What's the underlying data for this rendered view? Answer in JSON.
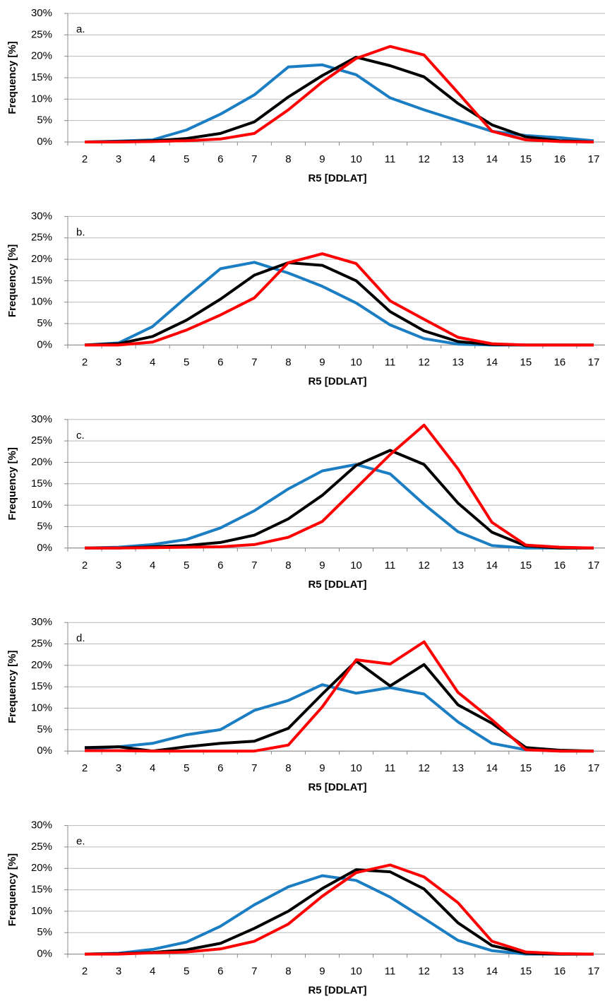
{
  "chart_data": [
    {
      "type": "line",
      "label": "a.",
      "ylabel": "Frequency [%]",
      "xlabel": "R5 [DDLAT]",
      "categories": [
        2,
        3,
        4,
        5,
        6,
        7,
        8,
        9,
        10,
        11,
        12,
        13,
        14,
        15,
        16,
        17
      ],
      "ylim": [
        0,
        30
      ],
      "yticks": [
        {
          "value": 0,
          "label": "0%"
        },
        {
          "value": 5,
          "label": "5%"
        },
        {
          "value": 10,
          "label": "10%"
        },
        {
          "value": 15,
          "label": "15%"
        },
        {
          "value": 20,
          "label": "20%"
        },
        {
          "value": 25,
          "label": "25%"
        },
        {
          "value": 30,
          "label": "30%"
        }
      ],
      "grid": true,
      "series": [
        {
          "color": "#1b7dc2",
          "values": [
            0,
            0.2,
            0.5,
            2.8,
            6.5,
            11,
            17.5,
            18,
            15.7,
            10.3,
            7.5,
            5,
            2.5,
            1.5,
            1,
            0.3
          ]
        },
        {
          "color": "#000000",
          "values": [
            0,
            0.1,
            0.3,
            0.8,
            2,
            4.7,
            10.5,
            15.5,
            19.8,
            17.8,
            15.2,
            9,
            4,
            1.2,
            0.3,
            0
          ]
        },
        {
          "color": "#ff0000",
          "values": [
            0,
            0,
            0.1,
            0.3,
            0.7,
            2,
            7.5,
            14,
            19.5,
            22.3,
            20.3,
            11.5,
            2.5,
            0.5,
            0.1,
            0
          ]
        }
      ]
    },
    {
      "type": "line",
      "label": "b.",
      "ylabel": "Frequency [%]",
      "xlabel": "R5 [DDLAT]",
      "categories": [
        2,
        3,
        4,
        5,
        6,
        7,
        8,
        9,
        10,
        11,
        12,
        13,
        14,
        15,
        16,
        17
      ],
      "ylim": [
        0,
        30
      ],
      "yticks": [
        {
          "value": 0,
          "label": "0%"
        },
        {
          "value": 5,
          "label": "5%"
        },
        {
          "value": 10,
          "label": "10%"
        },
        {
          "value": 15,
          "label": "15%"
        },
        {
          "value": 20,
          "label": "20%"
        },
        {
          "value": 25,
          "label": "25%"
        },
        {
          "value": 30,
          "label": "30%"
        }
      ],
      "grid": true,
      "series": [
        {
          "color": "#1b7dc2",
          "values": [
            0,
            0.5,
            4.3,
            11.2,
            17.8,
            19.3,
            16.8,
            13.7,
            9.8,
            4.7,
            1.5,
            0.2,
            0,
            0,
            0,
            0
          ]
        },
        {
          "color": "#000000",
          "values": [
            0,
            0.3,
            2,
            5.8,
            10.7,
            16.3,
            19.2,
            18.6,
            15,
            7.8,
            3.3,
            0.8,
            0.1,
            0,
            0,
            0
          ]
        },
        {
          "color": "#ff0000",
          "values": [
            0,
            0,
            0.7,
            3.5,
            7,
            11,
            19.2,
            21.3,
            19,
            10.3,
            6,
            1.8,
            0.3,
            0,
            0,
            0
          ]
        }
      ]
    },
    {
      "type": "line",
      "label": "c.",
      "ylabel": "Frequency [%]",
      "xlabel": "R5 [DDLAT]",
      "categories": [
        2,
        3,
        4,
        5,
        6,
        7,
        8,
        9,
        10,
        11,
        12,
        13,
        14,
        15,
        16,
        17
      ],
      "ylim": [
        0,
        30
      ],
      "yticks": [
        {
          "value": 0,
          "label": "0%"
        },
        {
          "value": 5,
          "label": "5%"
        },
        {
          "value": 10,
          "label": "10%"
        },
        {
          "value": 15,
          "label": "15%"
        },
        {
          "value": 20,
          "label": "20%"
        },
        {
          "value": 25,
          "label": "25%"
        },
        {
          "value": 30,
          "label": "30%"
        }
      ],
      "grid": true,
      "series": [
        {
          "color": "#1b7dc2",
          "values": [
            0,
            0.2,
            0.8,
            2,
            4.7,
            8.7,
            13.8,
            18,
            19.5,
            17.3,
            10.2,
            3.8,
            0.6,
            0,
            0,
            0
          ]
        },
        {
          "color": "#000000",
          "values": [
            0,
            0,
            0.3,
            0.6,
            1.3,
            3,
            6.8,
            12.3,
            19.3,
            22.8,
            19.5,
            10.5,
            3.7,
            0.5,
            0,
            0
          ]
        },
        {
          "color": "#ff0000",
          "values": [
            0,
            0,
            0.1,
            0.2,
            0.3,
            0.8,
            2.5,
            6.2,
            14,
            21.8,
            28.7,
            18.5,
            6,
            0.7,
            0.2,
            0
          ]
        }
      ]
    },
    {
      "type": "line",
      "label": "d.",
      "ylabel": "Frequency [%]",
      "xlabel": "R5 [DDLAT]",
      "categories": [
        2,
        3,
        4,
        5,
        6,
        7,
        8,
        9,
        10,
        11,
        12,
        13,
        14,
        15,
        16,
        17
      ],
      "ylim": [
        0,
        30
      ],
      "yticks": [
        {
          "value": 0,
          "label": "0%"
        },
        {
          "value": 5,
          "label": "5%"
        },
        {
          "value": 10,
          "label": "10%"
        },
        {
          "value": 15,
          "label": "15%"
        },
        {
          "value": 20,
          "label": "20%"
        },
        {
          "value": 25,
          "label": "25%"
        },
        {
          "value": 30,
          "label": "30%"
        }
      ],
      "grid": true,
      "series": [
        {
          "color": "#1b7dc2",
          "values": [
            0.5,
            1,
            1.8,
            3.8,
            5,
            9.5,
            11.8,
            15.5,
            13.5,
            14.8,
            13.3,
            6.8,
            1.8,
            0.3,
            0,
            0
          ]
        },
        {
          "color": "#000000",
          "values": [
            0.8,
            1,
            0,
            1,
            1.8,
            2.3,
            5.3,
            13.3,
            21,
            15.2,
            20.2,
            10.8,
            6.5,
            0.8,
            0.2,
            0
          ]
        },
        {
          "color": "#ff0000",
          "values": [
            0.1,
            0.1,
            0,
            0,
            0,
            0,
            1.4,
            10.3,
            21.3,
            20.3,
            25.5,
            13.7,
            7.3,
            0.3,
            0,
            0
          ]
        }
      ]
    },
    {
      "type": "line",
      "label": "e.",
      "ylabel": "Frequency [%]",
      "xlabel": "R5 [DDLAT]",
      "categories": [
        2,
        3,
        4,
        5,
        6,
        7,
        8,
        9,
        10,
        11,
        12,
        13,
        14,
        15,
        16,
        17
      ],
      "ylim": [
        0,
        30
      ],
      "yticks": [
        {
          "value": 0,
          "label": "0%"
        },
        {
          "value": 5,
          "label": "5%"
        },
        {
          "value": 10,
          "label": "10%"
        },
        {
          "value": 15,
          "label": "15%"
        },
        {
          "value": 20,
          "label": "20%"
        },
        {
          "value": 25,
          "label": "25%"
        },
        {
          "value": 30,
          "label": "30%"
        }
      ],
      "grid": true,
      "series": [
        {
          "color": "#1b7dc2",
          "values": [
            0,
            0.2,
            1.1,
            2.8,
            6.5,
            11.5,
            15.7,
            18.3,
            17.2,
            13.3,
            8.3,
            3.2,
            0.8,
            0,
            0,
            0
          ]
        },
        {
          "color": "#000000",
          "values": [
            0,
            0.1,
            0.4,
            1,
            2.5,
            6,
            10,
            15.3,
            19.7,
            19.2,
            15.2,
            7.3,
            2,
            0.2,
            0,
            0
          ]
        },
        {
          "color": "#ff0000",
          "values": [
            0,
            0,
            0.3,
            0.5,
            1.2,
            3,
            7,
            13.5,
            19,
            20.8,
            18,
            12,
            3,
            0.5,
            0.1,
            0
          ]
        }
      ]
    }
  ]
}
